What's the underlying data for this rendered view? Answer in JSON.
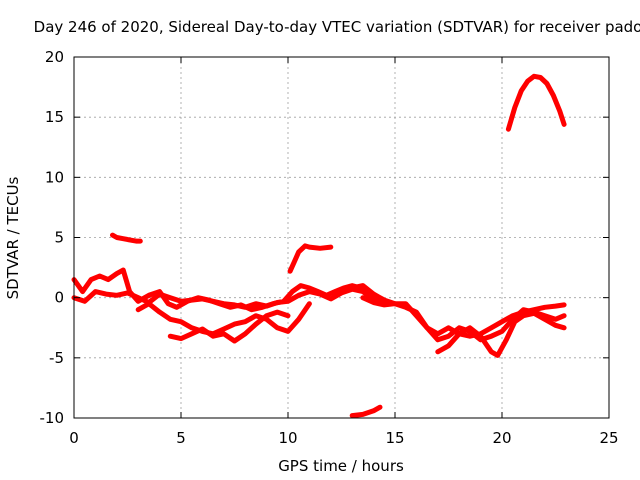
{
  "chart_data": {
    "type": "scatter",
    "title": "Day 246 of 2020, Sidereal Day-to-day VTEC variation (SDTVAR) for receiver pado",
    "xlabel": "GPS time / hours",
    "ylabel": "SDTVAR / TECUs",
    "xlim": [
      0,
      25
    ],
    "ylim": [
      -10,
      20
    ],
    "xticks": [
      0,
      5,
      10,
      15,
      20,
      25
    ],
    "yticks": [
      -10,
      -5,
      0,
      5,
      10,
      15,
      20
    ],
    "grid": true,
    "color": "#ff0000",
    "series": [
      {
        "name": "track-1",
        "x": [
          0.0,
          0.4,
          0.8,
          1.2,
          1.6,
          2.0,
          2.3,
          2.6,
          3.0,
          3.5,
          4.0,
          4.4,
          4.8,
          5.3,
          5.8,
          6.3,
          6.8,
          7.3,
          7.8,
          8.3,
          8.8,
          9.3,
          9.8,
          10.2,
          10.6,
          11.0,
          11.4,
          11.8,
          12.2,
          12.6,
          13.0,
          13.4,
          13.8,
          14.2
        ],
        "y": [
          1.5,
          0.5,
          1.5,
          1.8,
          1.5,
          2.0,
          2.3,
          0.5,
          -0.3,
          0.2,
          0.5,
          -0.5,
          -0.8,
          -0.3,
          0.0,
          -0.2,
          -0.5,
          -0.8,
          -0.6,
          -1.0,
          -0.8,
          -0.5,
          -0.3,
          0.5,
          1.0,
          0.8,
          0.5,
          0.2,
          0.5,
          0.8,
          1.0,
          0.8,
          0.3,
          0.0
        ]
      },
      {
        "name": "track-2",
        "x": [
          0.0,
          0.5,
          1.0,
          1.5,
          2.0,
          2.5,
          3.0,
          3.5,
          4.0,
          4.5,
          5.0,
          5.5,
          6.0,
          6.5,
          7.0,
          7.5,
          8.0,
          8.5,
          9.0,
          9.5,
          10.0,
          10.5,
          11.0,
          11.5,
          12.0,
          12.5,
          13.0,
          13.5,
          14.0,
          14.5
        ],
        "y": [
          0.0,
          -0.3,
          0.5,
          0.3,
          0.2,
          0.4,
          0.0,
          -0.4,
          0.3,
          0.0,
          -0.3,
          -0.2,
          -0.1,
          -0.3,
          -0.5,
          -0.6,
          -0.8,
          -0.5,
          -0.7,
          -0.4,
          -0.3,
          0.2,
          0.5,
          0.3,
          -0.1,
          0.4,
          0.7,
          0.5,
          -0.2,
          -0.5
        ]
      },
      {
        "name": "track-3",
        "x": [
          3.0,
          3.5,
          4.0,
          4.5,
          5.0,
          5.5,
          6.0,
          6.5,
          7.0,
          7.5,
          8.0,
          8.5,
          9.0,
          9.5,
          10.0,
          10.5,
          11.0
        ],
        "y": [
          -1.0,
          -0.5,
          -1.2,
          -1.8,
          -2.0,
          -2.5,
          -2.8,
          -3.0,
          -2.6,
          -2.2,
          -2.0,
          -1.5,
          -1.8,
          -2.5,
          -2.8,
          -1.8,
          -0.5
        ]
      },
      {
        "name": "track-4",
        "x": [
          4.5,
          5.0,
          5.5,
          6.0,
          6.5,
          7.0,
          7.5,
          8.0,
          8.5,
          9.0,
          9.5,
          10.0
        ],
        "y": [
          -3.2,
          -3.4,
          -3.0,
          -2.6,
          -3.2,
          -3.0,
          -3.6,
          -3.0,
          -2.2,
          -1.5,
          -1.2,
          -1.5
        ]
      },
      {
        "name": "track-5",
        "x": [
          12.5,
          13.0,
          13.5,
          14.0,
          14.5,
          15.0,
          15.5,
          16.0,
          16.5,
          17.0,
          17.5,
          18.0,
          18.5,
          19.0,
          19.5,
          20.0,
          20.5,
          21.0,
          21.5,
          22.0,
          22.5,
          22.9
        ],
        "y": [
          0.5,
          0.8,
          1.0,
          0.3,
          -0.2,
          -0.5,
          -0.5,
          -1.5,
          -2.5,
          -3.0,
          -2.5,
          -3.0,
          -3.2,
          -3.0,
          -2.5,
          -2.0,
          -1.5,
          -1.2,
          -1.0,
          -0.8,
          -0.7,
          -0.6
        ]
      },
      {
        "name": "track-6",
        "x": [
          13.5,
          14.0,
          14.5,
          15.0,
          15.5,
          16.0,
          16.5,
          17.0,
          17.5,
          18.0,
          18.5,
          19.0,
          19.5,
          20.0,
          20.5,
          21.0,
          21.5,
          22.0,
          22.5,
          22.9
        ],
        "y": [
          0.0,
          -0.4,
          -0.6,
          -0.5,
          -0.8,
          -1.2,
          -2.5,
          -3.5,
          -3.2,
          -2.5,
          -2.8,
          -3.5,
          -3.2,
          -2.8,
          -1.8,
          -1.0,
          -1.2,
          -1.5,
          -1.8,
          -1.5
        ]
      },
      {
        "name": "track-7",
        "x": [
          17.0,
          17.5,
          18.0,
          18.5,
          19.0,
          19.5,
          19.8,
          20.2,
          20.6,
          21.0,
          21.5,
          22.0,
          22.5,
          22.9
        ],
        "y": [
          -4.5,
          -4.0,
          -3.0,
          -2.5,
          -3.2,
          -4.5,
          -4.8,
          -3.5,
          -2.0,
          -1.5,
          -1.3,
          -1.8,
          -2.3,
          -2.5
        ]
      },
      {
        "name": "track-8",
        "x": [
          1.8,
          2.0,
          2.3,
          2.6,
          2.9,
          3.1
        ],
        "y": [
          5.2,
          5.0,
          4.9,
          4.8,
          4.7,
          4.7
        ]
      },
      {
        "name": "track-9",
        "x": [
          10.1,
          10.3,
          10.5,
          10.8,
          11.0,
          11.5,
          12.0
        ],
        "y": [
          2.2,
          3.0,
          3.8,
          4.3,
          4.2,
          4.1,
          4.2
        ]
      },
      {
        "name": "track-10",
        "x": [
          13.0,
          13.5,
          14.0,
          14.3
        ],
        "y": [
          -9.8,
          -9.7,
          -9.4,
          -9.1
        ]
      },
      {
        "name": "track-11",
        "x": [
          20.3,
          20.6,
          20.9,
          21.2,
          21.5,
          21.8,
          22.1,
          22.4,
          22.7,
          22.9
        ],
        "y": [
          14.0,
          15.8,
          17.2,
          18.0,
          18.4,
          18.3,
          17.8,
          16.8,
          15.5,
          14.4
        ]
      }
    ]
  }
}
